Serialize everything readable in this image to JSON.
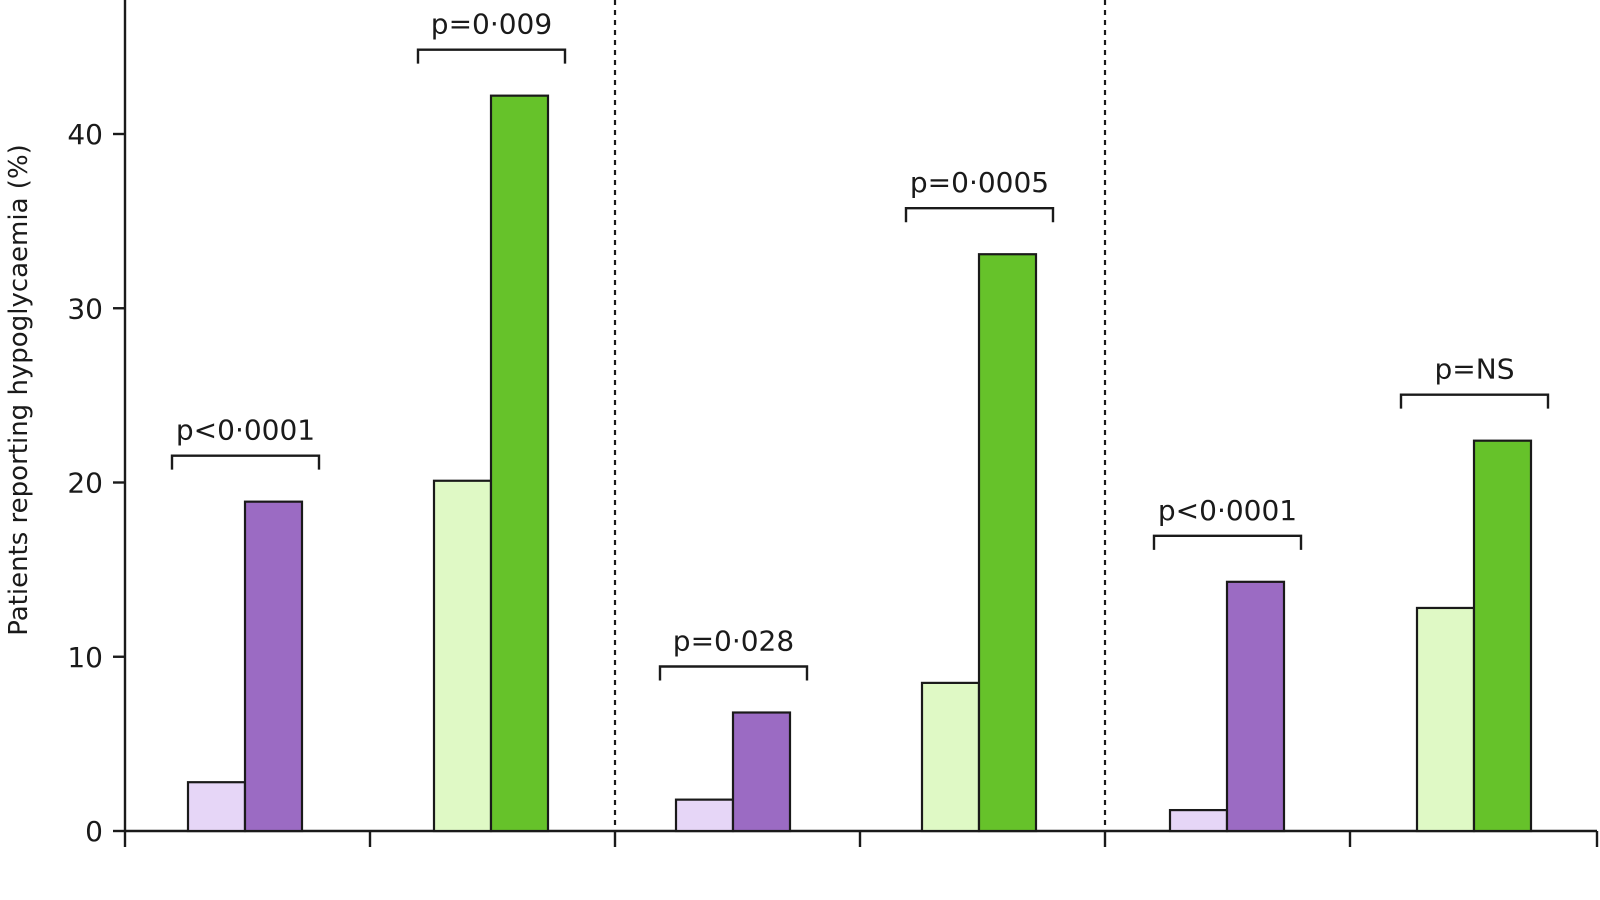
{
  "chart_data": {
    "type": "bar",
    "title": "",
    "xlabel": "",
    "ylabel": "Patients reporting hypoglycaemia (%)",
    "ylim": [
      0,
      48
    ],
    "yticks": [
      0,
      10,
      20,
      30,
      40
    ],
    "grid": false,
    "groups": [
      {
        "name": "panel-1-purple",
        "bars": [
          {
            "value": 2.8,
            "color": "#e6d6f7"
          },
          {
            "value": 18.9,
            "color": "#9b6bc3"
          }
        ],
        "pvalue": "p<0·0001"
      },
      {
        "name": "panel-1-green",
        "bars": [
          {
            "value": 20.1,
            "color": "#dff9c5"
          },
          {
            "value": 42.2,
            "color": "#66c22a"
          }
        ],
        "pvalue": "p=0·009"
      },
      {
        "name": "panel-2-purple",
        "bars": [
          {
            "value": 1.8,
            "color": "#e6d6f7"
          },
          {
            "value": 6.8,
            "color": "#9b6bc3"
          }
        ],
        "pvalue": "p=0·028"
      },
      {
        "name": "panel-2-green",
        "bars": [
          {
            "value": 8.5,
            "color": "#dff9c5"
          },
          {
            "value": 33.1,
            "color": "#66c22a"
          }
        ],
        "pvalue": "p=0·0005"
      },
      {
        "name": "panel-3-purple",
        "bars": [
          {
            "value": 1.2,
            "color": "#e6d6f7"
          },
          {
            "value": 14.3,
            "color": "#9b6bc3"
          }
        ],
        "pvalue": "p<0·0001"
      },
      {
        "name": "panel-3-green",
        "bars": [
          {
            "value": 12.8,
            "color": "#dff9c5"
          },
          {
            "value": 22.4,
            "color": "#66c22a"
          }
        ],
        "pvalue": "p=NS"
      }
    ],
    "panel_dividers_after_group": [
      1,
      3
    ]
  }
}
